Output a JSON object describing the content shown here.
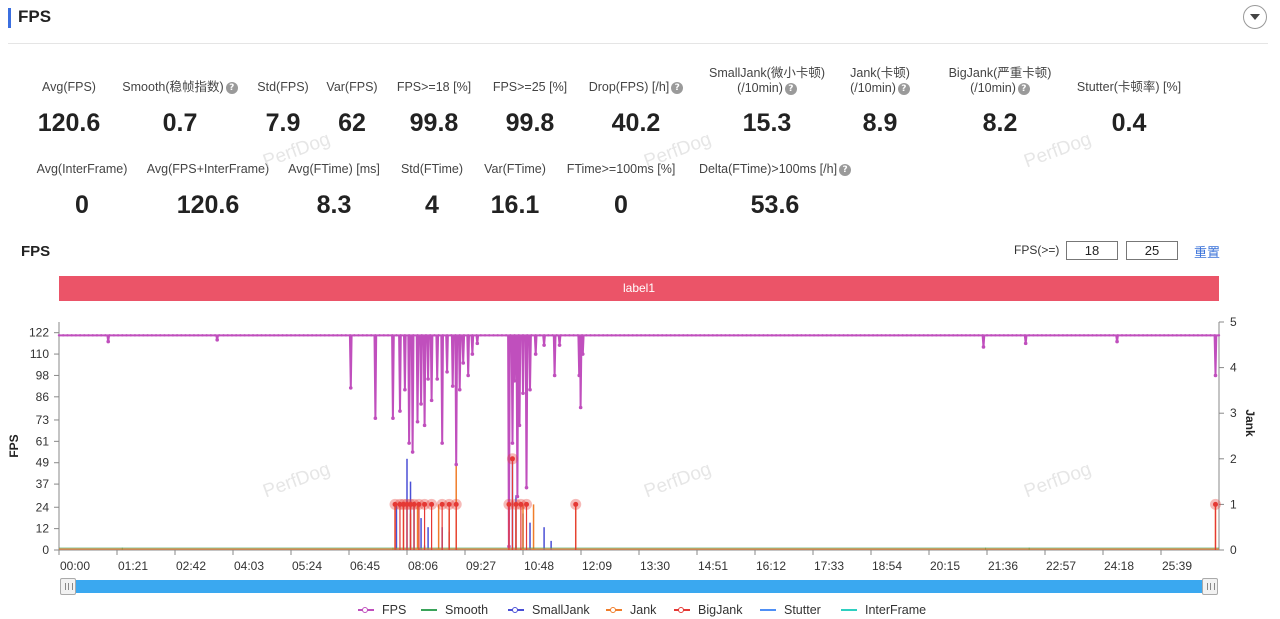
{
  "header": {
    "title": "FPS"
  },
  "metrics_row1": [
    {
      "label": "Avg(FPS)",
      "value": "120.6",
      "help": false
    },
    {
      "label": "Smooth(稳帧指数)",
      "value": "0.7",
      "help": true
    },
    {
      "label": "Std(FPS)",
      "value": "7.9",
      "help": false
    },
    {
      "label": "Var(FPS)",
      "value": "62",
      "help": false
    },
    {
      "label": "FPS>=18 [%]",
      "value": "99.8",
      "help": false
    },
    {
      "label": "FPS>=25 [%]",
      "value": "99.8",
      "help": false
    },
    {
      "label": "Drop(FPS) [/h]",
      "value": "40.2",
      "help": true
    },
    {
      "label": "SmallJank(微小卡顿)",
      "label2": "(/10min)",
      "value": "15.3",
      "help": true
    },
    {
      "label": "Jank(卡顿)",
      "label2": "(/10min)",
      "value": "8.9",
      "help": true
    },
    {
      "label": "BigJank(严重卡顿)",
      "label2": "(/10min)",
      "value": "8.2",
      "help": true
    },
    {
      "label": "Stutter(卡顿率) [%]",
      "value": "0.4",
      "help": false
    }
  ],
  "metrics_row2": [
    {
      "label": "Avg(InterFrame)",
      "value": "0",
      "help": false
    },
    {
      "label": "Avg(FPS+InterFrame)",
      "value": "120.6",
      "help": false
    },
    {
      "label": "Avg(FTime) [ms]",
      "value": "8.3",
      "help": false
    },
    {
      "label": "Std(FTime)",
      "value": "4",
      "help": false
    },
    {
      "label": "Var(FTime)",
      "value": "16.1",
      "help": false
    },
    {
      "label": "FTime>=100ms [%]",
      "value": "0",
      "help": false
    },
    {
      "label": "Delta(FTime)>100ms [/h]",
      "value": "53.6",
      "help": true
    }
  ],
  "watermark": "PerfDog",
  "chart_section": {
    "title": "FPS",
    "threshold_label": "FPS(>=)",
    "threshold_1": "18",
    "threshold_2": "25",
    "reset_label": "重置",
    "band_label": "label1"
  },
  "chart_data": {
    "type": "line",
    "xlabel": "",
    "ylabel": "FPS",
    "y2label": "Jank",
    "x_ticks": [
      "00:00",
      "01:21",
      "02:42",
      "04:03",
      "05:24",
      "06:45",
      "08:06",
      "09:27",
      "10:48",
      "12:09",
      "13:30",
      "14:51",
      "16:12",
      "17:33",
      "18:54",
      "20:15",
      "21:36",
      "22:57",
      "24:18",
      "25:39"
    ],
    "x_range_seconds": [
      0,
      1650
    ],
    "ylim": [
      0,
      128
    ],
    "y_ticks": [
      0,
      12,
      24,
      37,
      49,
      61,
      73,
      86,
      98,
      110,
      122
    ],
    "y2lim": [
      0,
      5
    ],
    "y2_ticks": [
      0,
      1,
      2,
      3,
      4,
      5
    ],
    "colors": {
      "FPS": "#c04fbd",
      "Smooth": "#3aa35a",
      "SmallJank": "#4a4fd6",
      "Jank": "#f07d2a",
      "BigJank": "#e53935",
      "Stutter": "#4f8ff5",
      "InterFrame": "#2ecfc0"
    },
    "series": [
      {
        "name": "FPS",
        "baseline": 120.5,
        "dips": [
          [
            70,
            117
          ],
          [
            225,
            118
          ],
          [
            415,
            91
          ],
          [
            450,
            74
          ],
          [
            475,
            74
          ],
          [
            485,
            78
          ],
          [
            492,
            90
          ],
          [
            498,
            60
          ],
          [
            503,
            55
          ],
          [
            510,
            72
          ],
          [
            515,
            82
          ],
          [
            520,
            70
          ],
          [
            525,
            96
          ],
          [
            530,
            84
          ],
          [
            538,
            96
          ],
          [
            545,
            60
          ],
          [
            552,
            100
          ],
          [
            560,
            92
          ],
          [
            565,
            48
          ],
          [
            570,
            90
          ],
          [
            575,
            105
          ],
          [
            582,
            98
          ],
          [
            588,
            110
          ],
          [
            595,
            116
          ],
          [
            640,
            2
          ],
          [
            645,
            60
          ],
          [
            648,
            95
          ],
          [
            652,
            30
          ],
          [
            655,
            70
          ],
          [
            660,
            88
          ],
          [
            665,
            35
          ],
          [
            670,
            90
          ],
          [
            678,
            110
          ],
          [
            690,
            115
          ],
          [
            705,
            98
          ],
          [
            712,
            115
          ],
          [
            740,
            98
          ],
          [
            742,
            80
          ],
          [
            745,
            110
          ],
          [
            1315,
            114
          ],
          [
            1375,
            116
          ],
          [
            1505,
            117
          ],
          [
            1645,
            98
          ]
        ]
      },
      {
        "name": "SmallJank",
        "values": [
          [
            480,
            1.0
          ],
          [
            495,
            2.0
          ],
          [
            500,
            1.5
          ],
          [
            505,
            1.0
          ],
          [
            515,
            0.7
          ],
          [
            525,
            0.5
          ],
          [
            545,
            0.5
          ],
          [
            555,
            0.4
          ],
          [
            645,
            2.0
          ],
          [
            650,
            1.2
          ],
          [
            660,
            0.8
          ],
          [
            670,
            0.6
          ],
          [
            690,
            0.5
          ],
          [
            700,
            0.2
          ]
        ]
      },
      {
        "name": "Jank",
        "values": [
          [
            478,
            1.0
          ],
          [
            490,
            1.0
          ],
          [
            500,
            0.8
          ],
          [
            510,
            1.0
          ],
          [
            540,
            1.0
          ],
          [
            555,
            0.9
          ],
          [
            565,
            2.0
          ],
          [
            640,
            1.0
          ],
          [
            650,
            1.0
          ],
          [
            660,
            1.0
          ],
          [
            675,
            1.0
          ],
          [
            735,
            1.0
          ],
          [
            1645,
            1.0
          ]
        ]
      },
      {
        "name": "BigJank",
        "values": [
          [
            478,
            1.0
          ],
          [
            485,
            1.0
          ],
          [
            490,
            1.0
          ],
          [
            495,
            1.0
          ],
          [
            500,
            1.0
          ],
          [
            505,
            1.0
          ],
          [
            512,
            1.0
          ],
          [
            520,
            1.0
          ],
          [
            530,
            1.0
          ],
          [
            545,
            1.0
          ],
          [
            555,
            1.0
          ],
          [
            565,
            1.0
          ],
          [
            640,
            1.0
          ],
          [
            645,
            2.0
          ],
          [
            650,
            1.0
          ],
          [
            657,
            1.0
          ],
          [
            665,
            1.0
          ],
          [
            735,
            1.0
          ],
          [
            1645,
            1.0
          ]
        ]
      },
      {
        "name": "Smooth",
        "values": [
          [
            90,
            0.05
          ],
          [
            475,
            0.05
          ],
          [
            1318,
            0.05
          ],
          [
            1380,
            0.05
          ]
        ]
      },
      {
        "name": "Stutter",
        "values": [
          [
            500,
            0.1
          ],
          [
            520,
            0.1
          ],
          [
            650,
            0.1
          ]
        ]
      },
      {
        "name": "InterFrame",
        "values": []
      }
    ]
  },
  "legend": [
    "FPS",
    "Smooth",
    "SmallJank",
    "Jank",
    "BigJank",
    "Stutter",
    "InterFrame"
  ]
}
